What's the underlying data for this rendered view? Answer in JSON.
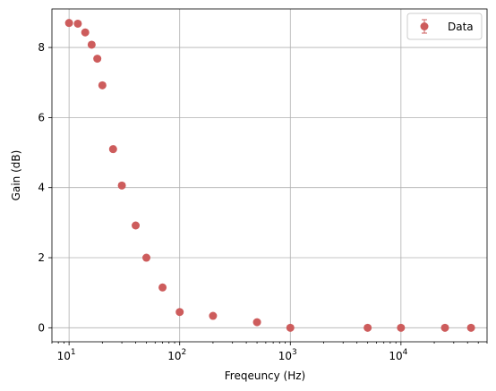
{
  "chart_data": {
    "type": "scatter",
    "title": "",
    "xlabel": "Freqeuncy (Hz)",
    "ylabel": "Gain (dB)",
    "xscale": "log",
    "xlim": [
      7,
      60000
    ],
    "ylim": [
      -0.4,
      9.1
    ],
    "grid": true,
    "legend_position": "top-right",
    "x_ticks": [
      {
        "value": 10,
        "base": "10",
        "exp": "1"
      },
      {
        "value": 100,
        "base": "10",
        "exp": "2"
      },
      {
        "value": 1000,
        "base": "10",
        "exp": "3"
      },
      {
        "value": 10000,
        "base": "10",
        "exp": "4"
      }
    ],
    "y_ticks": [
      {
        "value": 0,
        "label": "0"
      },
      {
        "value": 2,
        "label": "2"
      },
      {
        "value": 4,
        "label": "4"
      },
      {
        "value": 6,
        "label": "6"
      },
      {
        "value": 8,
        "label": "8"
      }
    ],
    "series": [
      {
        "name": "Data",
        "color": "#cd5c5c",
        "marker": "circle-with-errorbars",
        "x": [
          10,
          12,
          14,
          16,
          18,
          20,
          25,
          30,
          40,
          50,
          70,
          100,
          200,
          500,
          1000,
          5000,
          10000,
          25000,
          43000
        ],
        "y": [
          8.7,
          8.68,
          8.43,
          8.08,
          7.68,
          6.92,
          5.1,
          4.06,
          2.92,
          2.0,
          1.15,
          0.45,
          0.34,
          0.16,
          0.0,
          0.0,
          0.0,
          0.0,
          0.0
        ]
      }
    ]
  }
}
